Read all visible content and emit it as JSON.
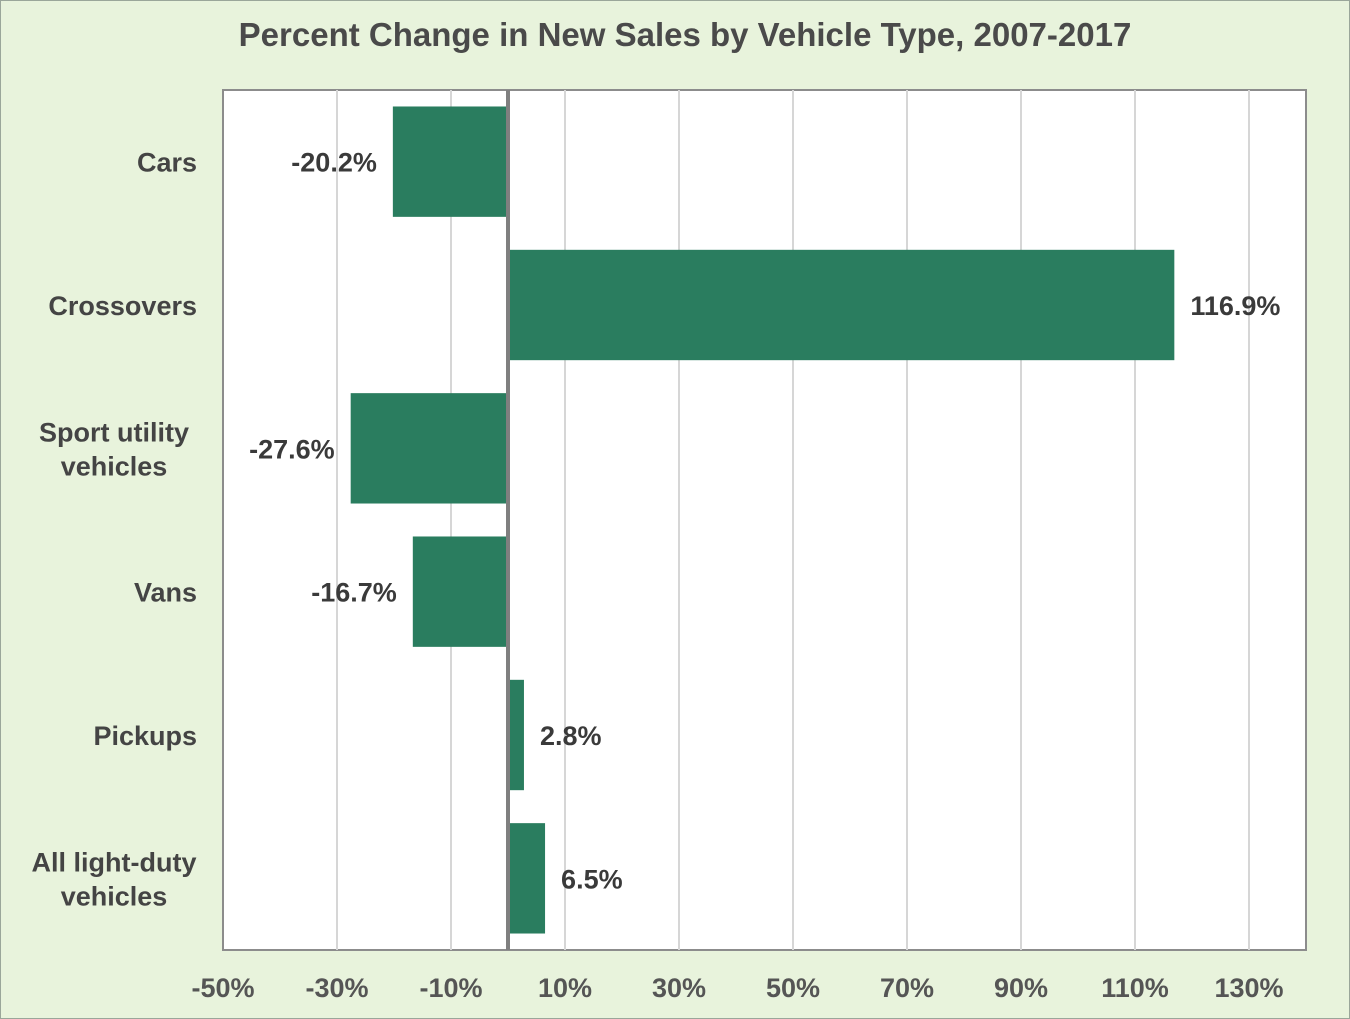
{
  "chart_data": {
    "type": "bar",
    "orientation": "horizontal",
    "title": "Percent Change in New Sales by Vehicle Type, 2007-2017",
    "categories": [
      [
        "Cars"
      ],
      [
        "Crossovers"
      ],
      [
        "Sport utility",
        "vehicles"
      ],
      [
        "Vans"
      ],
      [
        "Pickups"
      ],
      [
        "All light-duty",
        "vehicles"
      ]
    ],
    "values": [
      -20.2,
      116.9,
      -27.6,
      -16.7,
      2.8,
      6.5
    ],
    "value_labels": [
      "-20.2%",
      "116.9%",
      "-27.6%",
      "-16.7%",
      "2.8%",
      "6.5%"
    ],
    "xlim": [
      -50,
      140
    ],
    "xticks": [
      -50,
      -30,
      -10,
      10,
      30,
      50,
      70,
      90,
      110,
      130
    ],
    "xtick_labels": [
      "-50%",
      "-30%",
      "-10%",
      "10%",
      "30%",
      "50%",
      "70%",
      "90%",
      "110%",
      "130%"
    ],
    "xlabel": "",
    "ylabel": "",
    "grid": true,
    "legend": "none",
    "colors": {
      "bar": "#2a7d5f",
      "background": "#e8f3dc",
      "plot_background": "#ffffff"
    }
  }
}
